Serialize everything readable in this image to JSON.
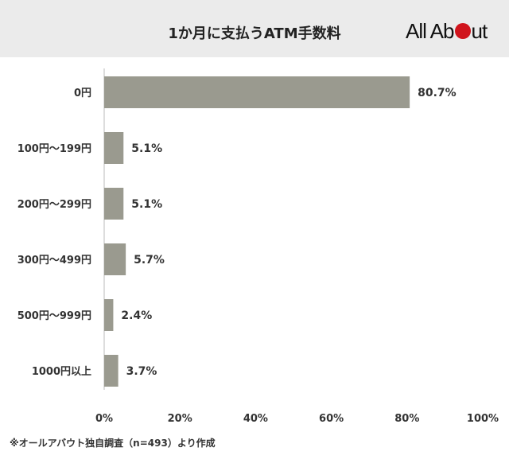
{
  "header": {
    "title": "1か月に支払うATM手数料",
    "logo_text_left": "All Ab",
    "logo_text_right": "ut"
  },
  "footnote": "※オールアバウト独自調査（n=493）より作成",
  "colors": {
    "bar": "#9a9a8f",
    "logo_dot": "#d0141c",
    "header_bg": "#ebebeb"
  },
  "chart_data": {
    "type": "bar",
    "orientation": "horizontal",
    "title": "1か月に支払うATM手数料",
    "categories": [
      "0円",
      "100円〜199円",
      "200円〜299円",
      "300円〜499円",
      "500円〜999円",
      "1000円以上"
    ],
    "values": [
      80.7,
      5.1,
      5.1,
      5.7,
      2.4,
      3.7
    ],
    "value_labels": [
      "80.7%",
      "5.1%",
      "5.1%",
      "5.7%",
      "2.4%",
      "3.7%"
    ],
    "xlim": [
      0,
      100
    ],
    "x_ticks": [
      "0%",
      "20%",
      "40%",
      "60%",
      "80%",
      "100%"
    ],
    "grid": false,
    "legend": "none"
  }
}
